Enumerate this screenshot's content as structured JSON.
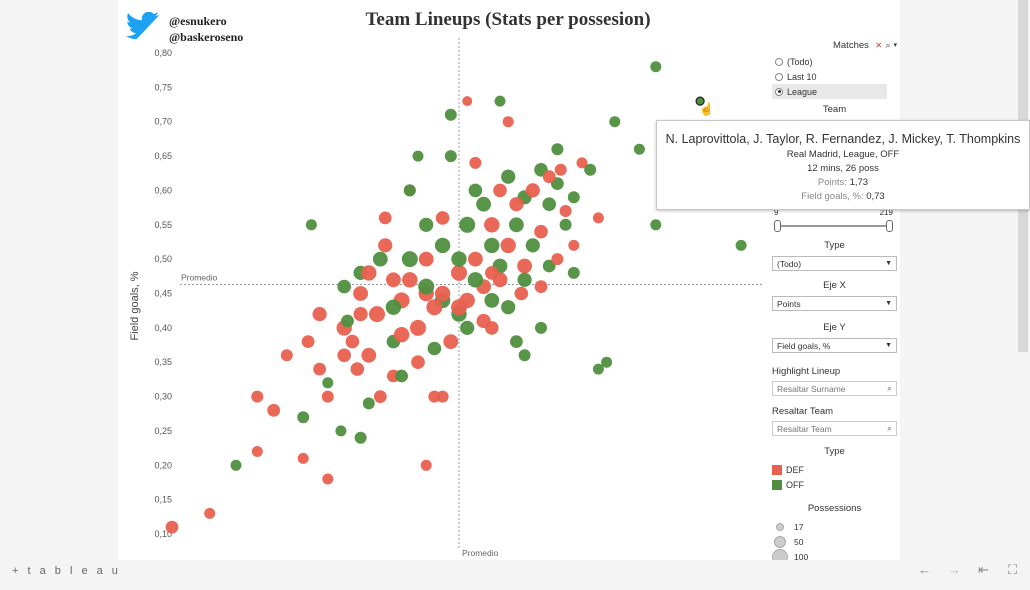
{
  "brand": {
    "twitter_handle": "@esnukero",
    "site_handle": "@baskeroseno"
  },
  "title": "Team Lineups (Stats per possesion)",
  "chart_data": {
    "type": "scatter",
    "title": "Team Lineups (Stats per possesion)",
    "ylabel": "Field goals, %",
    "xlabel": "",
    "ylim": [
      0.09,
      0.81
    ],
    "y_ticks": [
      "0,10",
      "0,15",
      "0,20",
      "0,25",
      "0,30",
      "0,35",
      "0,40",
      "0,45",
      "0,50",
      "0,55",
      "0,60",
      "0,65",
      "0,70",
      "0,75",
      "0,80"
    ],
    "reference_lines": {
      "x_label": "Promedio",
      "y_label": "Promedio",
      "y_value": 0.463
    },
    "grid": false,
    "colors": {
      "DEF": "#e8604f",
      "OFF": "#4f8f3f"
    },
    "series": [
      {
        "name": "DEF",
        "points": [
          [
            -1.75,
            0.11,
            50
          ],
          [
            -1.52,
            0.13,
            30
          ],
          [
            -1.23,
            0.22,
            30
          ],
          [
            -1.23,
            0.3,
            40
          ],
          [
            -1.13,
            0.28,
            50
          ],
          [
            -0.95,
            0.21,
            30
          ],
          [
            -0.8,
            0.18,
            30
          ],
          [
            -1.05,
            0.36,
            40
          ],
          [
            -0.92,
            0.38,
            50
          ],
          [
            -0.85,
            0.42,
            70
          ],
          [
            -0.7,
            0.4,
            90
          ],
          [
            -0.65,
            0.38,
            60
          ],
          [
            -0.6,
            0.45,
            80
          ],
          [
            -0.55,
            0.48,
            90
          ],
          [
            -0.5,
            0.42,
            100
          ],
          [
            -0.45,
            0.52,
            70
          ],
          [
            -0.4,
            0.33,
            50
          ],
          [
            -0.35,
            0.44,
            100
          ],
          [
            -0.3,
            0.47,
            90
          ],
          [
            -0.25,
            0.4,
            100
          ],
          [
            -0.2,
            0.5,
            80
          ],
          [
            -0.15,
            0.43,
            100
          ],
          [
            -0.1,
            0.45,
            90
          ],
          [
            -0.05,
            0.38,
            80
          ],
          [
            0.0,
            0.48,
            100
          ],
          [
            0.05,
            0.44,
            90
          ],
          [
            0.1,
            0.5,
            80
          ],
          [
            0.15,
            0.41,
            70
          ],
          [
            0.2,
            0.55,
            90
          ],
          [
            0.25,
            0.47,
            80
          ],
          [
            0.3,
            0.52,
            90
          ],
          [
            0.35,
            0.58,
            70
          ],
          [
            0.4,
            0.49,
            80
          ],
          [
            0.45,
            0.6,
            70
          ],
          [
            0.5,
            0.54,
            60
          ],
          [
            0.55,
            0.62,
            50
          ],
          [
            0.6,
            0.5,
            40
          ],
          [
            0.65,
            0.57,
            40
          ],
          [
            0.75,
            0.64,
            30
          ],
          [
            0.85,
            0.56,
            30
          ],
          [
            0.05,
            0.73,
            20
          ],
          [
            0.3,
            0.7,
            30
          ],
          [
            -0.2,
            0.2,
            30
          ],
          [
            -0.55,
            0.36,
            80
          ],
          [
            -0.62,
            0.34,
            60
          ],
          [
            -0.48,
            0.3,
            50
          ],
          [
            -0.25,
            0.35,
            60
          ],
          [
            -0.1,
            0.3,
            40
          ],
          [
            0.0,
            0.43,
            100
          ],
          [
            -0.2,
            0.45,
            90
          ],
          [
            -0.4,
            0.47,
            80
          ],
          [
            -0.35,
            0.39,
            90
          ],
          [
            0.15,
            0.46,
            80
          ],
          [
            0.2,
            0.48,
            60
          ],
          [
            0.38,
            0.45,
            60
          ],
          [
            0.5,
            0.46,
            50
          ],
          [
            0.62,
            0.63,
            40
          ],
          [
            -0.7,
            0.36,
            60
          ],
          [
            -0.45,
            0.56,
            50
          ],
          [
            -0.3,
            0.6,
            40
          ],
          [
            0.1,
            0.64,
            40
          ],
          [
            0.7,
            0.52,
            30
          ],
          [
            -0.8,
            0.3,
            40
          ],
          [
            -0.85,
            0.34,
            50
          ],
          [
            -0.6,
            0.42,
            70
          ],
          [
            -0.1,
            0.56,
            60
          ],
          [
            0.25,
            0.6,
            60
          ],
          [
            1.3,
            0.68,
            30
          ],
          [
            1.45,
            0.58,
            30
          ],
          [
            -0.15,
            0.3,
            40
          ],
          [
            0.2,
            0.4,
            60
          ]
        ]
      },
      {
        "name": "OFF",
        "points": [
          [
            -1.36,
            0.2,
            30
          ],
          [
            -0.95,
            0.27,
            40
          ],
          [
            -0.72,
            0.25,
            30
          ],
          [
            -0.8,
            0.32,
            30
          ],
          [
            -0.68,
            0.41,
            50
          ],
          [
            -0.6,
            0.48,
            70
          ],
          [
            -0.48,
            0.5,
            80
          ],
          [
            -0.4,
            0.43,
            90
          ],
          [
            -0.3,
            0.5,
            100
          ],
          [
            -0.2,
            0.46,
            100
          ],
          [
            -0.1,
            0.52,
            90
          ],
          [
            0.0,
            0.42,
            90
          ],
          [
            0.05,
            0.55,
            100
          ],
          [
            0.1,
            0.47,
            90
          ],
          [
            0.15,
            0.58,
            80
          ],
          [
            0.2,
            0.52,
            90
          ],
          [
            0.25,
            0.49,
            80
          ],
          [
            0.3,
            0.62,
            70
          ],
          [
            0.35,
            0.55,
            80
          ],
          [
            0.4,
            0.59,
            70
          ],
          [
            0.45,
            0.52,
            70
          ],
          [
            0.5,
            0.63,
            60
          ],
          [
            0.55,
            0.58,
            60
          ],
          [
            0.6,
            0.61,
            50
          ],
          [
            0.65,
            0.55,
            40
          ],
          [
            0.7,
            0.59,
            40
          ],
          [
            0.8,
            0.63,
            40
          ],
          [
            0.95,
            0.7,
            30
          ],
          [
            1.1,
            0.66,
            30
          ],
          [
            1.2,
            0.78,
            30
          ],
          [
            -0.05,
            0.71,
            40
          ],
          [
            0.25,
            0.73,
            30
          ],
          [
            -0.9,
            0.55,
            30
          ],
          [
            -0.3,
            0.6,
            40
          ],
          [
            -0.15,
            0.37,
            60
          ],
          [
            0.05,
            0.4,
            70
          ],
          [
            0.35,
            0.38,
            50
          ],
          [
            0.5,
            0.4,
            40
          ],
          [
            0.9,
            0.35,
            30
          ],
          [
            0.85,
            0.34,
            30
          ],
          [
            1.72,
            0.52,
            30
          ],
          [
            1.2,
            0.55,
            30
          ],
          [
            -0.35,
            0.33,
            50
          ],
          [
            -0.55,
            0.29,
            40
          ],
          [
            -0.6,
            0.24,
            40
          ],
          [
            -0.1,
            0.44,
            90
          ],
          [
            0.0,
            0.5,
            90
          ],
          [
            0.2,
            0.44,
            80
          ],
          [
            0.4,
            0.47,
            70
          ],
          [
            -0.7,
            0.46,
            60
          ],
          [
            -0.2,
            0.55,
            70
          ],
          [
            0.1,
            0.6,
            60
          ],
          [
            0.3,
            0.43,
            70
          ],
          [
            -0.4,
            0.38,
            60
          ],
          [
            0.55,
            0.49,
            50
          ],
          [
            0.7,
            0.48,
            40
          ],
          [
            0.6,
            0.66,
            40
          ],
          [
            -0.05,
            0.65,
            40
          ],
          [
            -0.25,
            0.65,
            30
          ],
          [
            0.4,
            0.36,
            40
          ]
        ]
      }
    ],
    "highlighted_point": {
      "series": "OFF",
      "x": 1.47,
      "y": 0.73,
      "size": 26
    }
  },
  "sidebar": {
    "matches": {
      "title": "Matches",
      "options": [
        "(Todo)",
        "Last 10",
        "League"
      ],
      "selected": 2
    },
    "team": {
      "title": "Team"
    },
    "slider": {
      "min_label": "9",
      "max_label": "219"
    },
    "type_filter": {
      "title": "Type",
      "value": "(Todo)"
    },
    "eje_x": {
      "title": "Eje X",
      "value": "Points"
    },
    "eje_y": {
      "title": "Eje Y",
      "value": "Field goals, %"
    },
    "highlight_lineup": {
      "title": "Highlight Lineup",
      "placeholder": "Resaltar Surname"
    },
    "resaltar_team": {
      "title": "Resaltar Team",
      "placeholder": "Resaltar Team"
    },
    "legend": {
      "title": "Type",
      "items": [
        {
          "label": "DEF",
          "color": "#e8604f"
        },
        {
          "label": "OFF",
          "color": "#4f8f3f"
        }
      ]
    },
    "possessions": {
      "title": "Possessions",
      "items": [
        "17",
        "50",
        "100"
      ]
    }
  },
  "tooltip": {
    "title": "N. Laprovittola, J. Taylor, R. Fernandez, J. Mickey, T. Thompkins",
    "subtitle": "Real Madrid, League, OFF",
    "line2": "12 mins, 26 poss",
    "points_label": "Points:",
    "points_value": "1,73",
    "fg_label": "Field goals, %:",
    "fg_value": "0,73"
  },
  "footer": {
    "logo_text": "+ t a b l e a u"
  }
}
